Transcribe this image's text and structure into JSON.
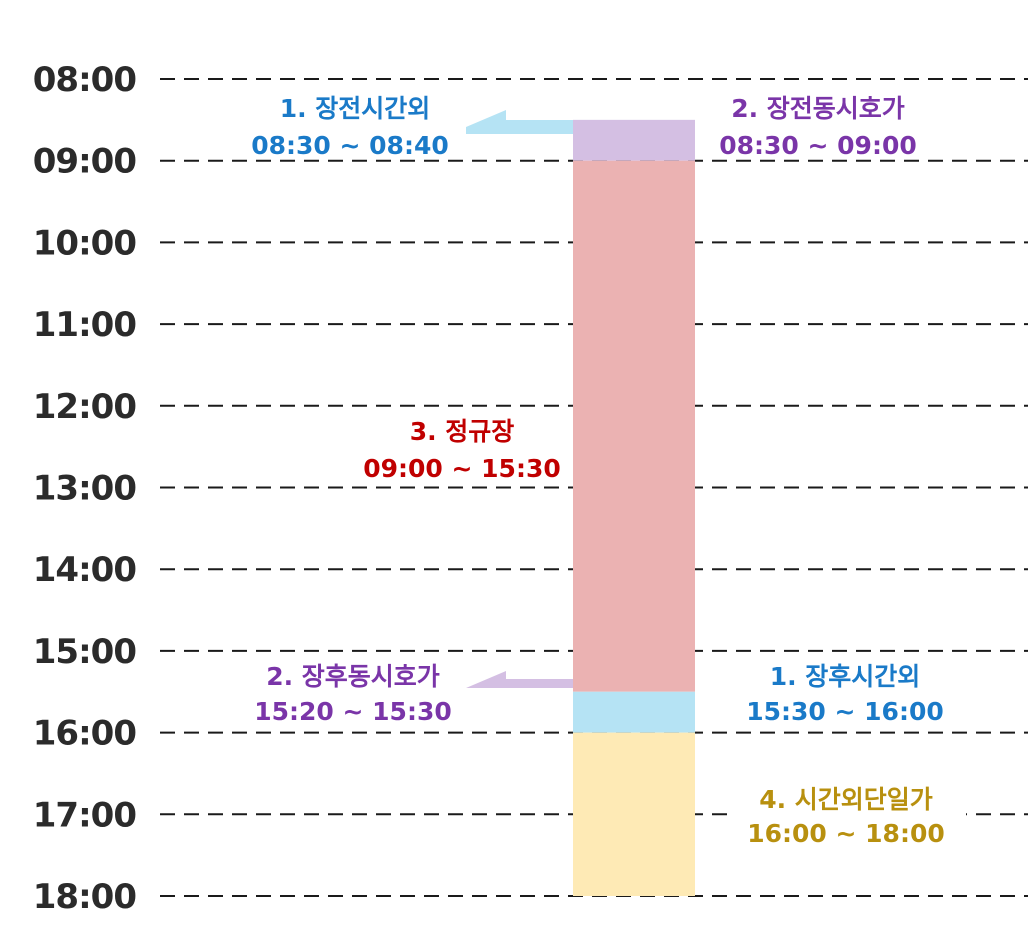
{
  "chart_data": {
    "type": "timeline",
    "time_axis": [
      "08:00",
      "09:00",
      "10:00",
      "11:00",
      "12:00",
      "13:00",
      "14:00",
      "15:00",
      "16:00",
      "17:00",
      "18:00"
    ],
    "segments": [
      {
        "start": "08:30",
        "end": "09:00",
        "color": "#d4bfe3"
      },
      {
        "start": "09:00",
        "end": "15:30",
        "color": "#ebb2b2"
      },
      {
        "start": "15:30",
        "end": "16:00",
        "color": "#b5e3f4"
      },
      {
        "start": "16:00",
        "end": "18:00",
        "color": "#feeab5"
      }
    ],
    "annotations": {
      "pre_after_hours": {
        "title": "1. 장전시간외",
        "range": "08:30 ~ 08:40",
        "color": "#1a7ac8",
        "arrow_color": "#b5e3f4"
      },
      "pre_call_auction": {
        "title": "2. 장전동시호가",
        "range": "08:30 ~ 09:00",
        "color": "#7a35a8"
      },
      "regular_session": {
        "title": "3. 정규장",
        "range": "09:00 ~ 15:30",
        "color": "#c00000"
      },
      "post_call_auction": {
        "title": "2. 장후동시호가",
        "range": "15:20 ~ 15:30",
        "color": "#7a35a8",
        "arrow_color": "#d4bfe3"
      },
      "post_after_hours": {
        "title": "1. 장후시간외",
        "range": "15:30 ~ 16:00",
        "color": "#1a7ac8"
      },
      "after_hours_single": {
        "title": "4. 시간외단일가",
        "range": "16:00 ~ 18:00",
        "color": "#b8900f"
      }
    }
  }
}
